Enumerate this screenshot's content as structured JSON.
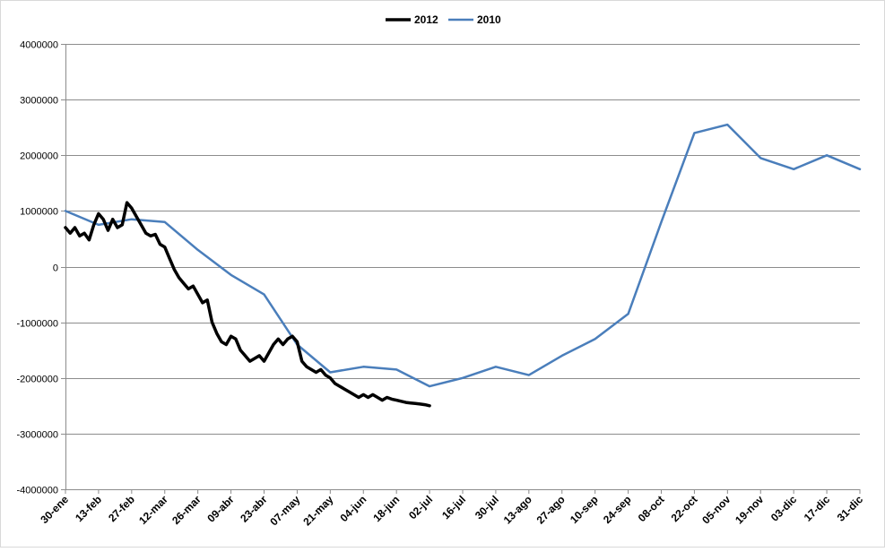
{
  "chart_data": {
    "type": "line",
    "title": "",
    "xlabel": "",
    "ylabel": "",
    "ylim": [
      -4000000,
      4000000
    ],
    "yticks": [
      4000000,
      3000000,
      2000000,
      1000000,
      0,
      -1000000,
      -2000000,
      -3000000,
      -4000000
    ],
    "ytick_labels": [
      "4000000",
      "3000000",
      "2000000",
      "1000000",
      "0",
      "-1000000",
      "-2000000",
      "-3000000",
      "-4000000"
    ],
    "xlim": [
      "30-ene",
      "31-dic"
    ],
    "xtick_labels": [
      "30-ene",
      "13-feb",
      "27-feb",
      "12-mar",
      "26-mar",
      "09-abr",
      "23-abr",
      "07-may",
      "21-may",
      "04-jun",
      "18-jun",
      "02-jul",
      "16-jul",
      "30-jul",
      "13-ago",
      "27-ago",
      "10-sep",
      "24-sep",
      "08-oct",
      "22-oct",
      "05-nov",
      "19-nov",
      "03-dic",
      "17-dic",
      "31-dic"
    ],
    "grid": true,
    "legend": "top-center",
    "series": [
      {
        "name": "2012",
        "color": "#000000",
        "x": [
          "30-ene",
          "01-feb",
          "03-feb",
          "05-feb",
          "07-feb",
          "09-feb",
          "11-feb",
          "13-feb",
          "15-feb",
          "17-feb",
          "19-feb",
          "21-feb",
          "23-feb",
          "25-feb",
          "27-feb",
          "29-feb",
          "02-mar",
          "04-mar",
          "06-mar",
          "08-mar",
          "10-mar",
          "12-mar",
          "14-mar",
          "16-mar",
          "18-mar",
          "20-mar",
          "22-mar",
          "24-mar",
          "26-mar",
          "28-mar",
          "30-mar",
          "01-abr",
          "03-abr",
          "05-abr",
          "07-abr",
          "09-abr",
          "11-abr",
          "13-abr",
          "15-abr",
          "17-abr",
          "19-abr",
          "21-abr",
          "23-abr",
          "25-abr",
          "27-abr",
          "29-abr",
          "01-may",
          "03-may",
          "05-may",
          "07-may",
          "09-may",
          "11-may",
          "13-may",
          "15-may",
          "17-may",
          "19-may",
          "21-may",
          "23-may",
          "25-may",
          "27-may",
          "29-may",
          "31-may",
          "02-jun",
          "04-jun",
          "06-jun",
          "08-jun",
          "10-jun",
          "12-jun",
          "14-jun",
          "16-jun",
          "18-jun",
          "20-jun",
          "22-jun",
          "24-jun",
          "26-jun",
          "28-jun",
          "30-jun",
          "02-jul"
        ],
        "y": [
          700000,
          600000,
          700000,
          550000,
          600000,
          480000,
          750000,
          950000,
          850000,
          650000,
          850000,
          700000,
          750000,
          1150000,
          1050000,
          900000,
          750000,
          600000,
          550000,
          580000,
          400000,
          350000,
          150000,
          -50000,
          -200000,
          -300000,
          -400000,
          -350000,
          -500000,
          -650000,
          -600000,
          -1000000,
          -1200000,
          -1350000,
          -1400000,
          -1250000,
          -1300000,
          -1500000,
          -1600000,
          -1700000,
          -1650000,
          -1600000,
          -1700000,
          -1550000,
          -1400000,
          -1300000,
          -1400000,
          -1300000,
          -1250000,
          -1350000,
          -1700000,
          -1800000,
          -1850000,
          -1900000,
          -1850000,
          -1950000,
          -2000000,
          -2100000,
          -2150000,
          -2200000,
          -2250000,
          -2300000,
          -2350000,
          -2300000,
          -2350000,
          -2300000,
          -2350000,
          -2400000,
          -2350000,
          -2380000,
          -2400000,
          -2420000,
          -2440000,
          -2450000,
          -2460000,
          -2470000,
          -2480000,
          -2500000
        ]
      },
      {
        "name": "2010",
        "color": "#4a7ebb",
        "x": [
          "30-ene",
          "13-feb",
          "27-feb",
          "12-mar",
          "26-mar",
          "09-abr",
          "23-abr",
          "07-may",
          "21-may",
          "04-jun",
          "18-jun",
          "02-jul",
          "16-jul",
          "30-jul",
          "13-ago",
          "27-ago",
          "10-sep",
          "24-sep",
          "08-oct",
          "22-oct",
          "05-nov",
          "19-nov",
          "03-dic",
          "17-dic",
          "31-dic"
        ],
        "y": [
          1000000,
          750000,
          850000,
          800000,
          300000,
          -150000,
          -500000,
          -1400000,
          -1900000,
          -1800000,
          -1850000,
          -2150000,
          -2000000,
          -1800000,
          -1950000,
          -1600000,
          -1300000,
          -850000,
          800000,
          2400000,
          2550000,
          1950000,
          1750000,
          2000000,
          1750000
        ]
      }
    ]
  }
}
